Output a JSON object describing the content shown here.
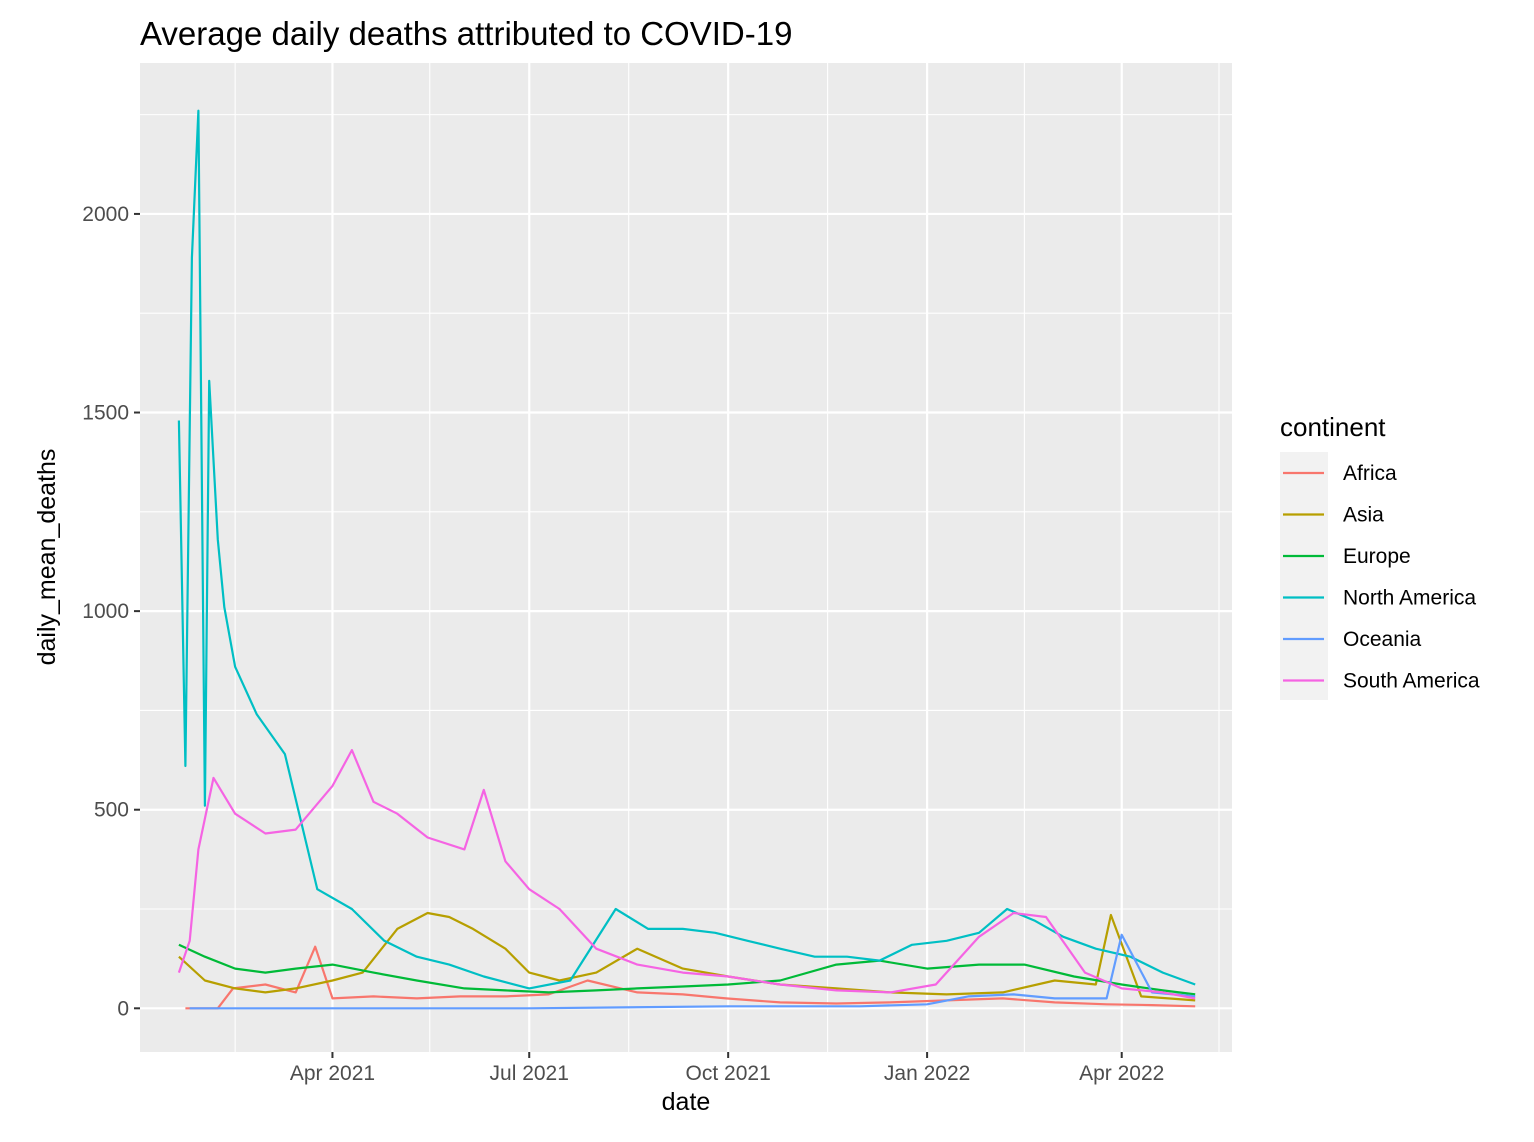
{
  "chart_data": {
    "type": "line",
    "title": "Average daily deaths attributed to COVID-19",
    "xlabel": "date",
    "ylabel": "daily_mean_deaths",
    "xlim": [
      "2021-01-02",
      "2022-05-22"
    ],
    "ylim": [
      -110,
      2380
    ],
    "x_ticks": [
      {
        "date": "2021-04-01",
        "label": "Apr 2021"
      },
      {
        "date": "2021-07-01",
        "label": "Jul 2021"
      },
      {
        "date": "2021-10-01",
        "label": "Oct 2021"
      },
      {
        "date": "2022-01-01",
        "label": "Jan 2022"
      },
      {
        "date": "2022-04-01",
        "label": "Apr 2022"
      }
    ],
    "x_minor_ticks": [
      "2021-02-15",
      "2021-05-16",
      "2021-08-16",
      "2021-11-16",
      "2022-02-15",
      "2022-05-16"
    ],
    "y_ticks": [
      0,
      500,
      1000,
      1500,
      2000
    ],
    "y_minor_ticks": [
      250,
      750,
      1250,
      1750,
      2250
    ],
    "grid": true,
    "legend": {
      "title": "continent",
      "position": "right"
    },
    "series": [
      {
        "name": "Africa",
        "color": "#F8766D",
        "x": [
          "2021-01-23",
          "2021-02-07",
          "2021-02-14",
          "2021-03-01",
          "2021-03-15",
          "2021-03-24",
          "2021-04-01",
          "2021-04-20",
          "2021-05-10",
          "2021-05-30",
          "2021-06-20",
          "2021-07-10",
          "2021-07-28",
          "2021-08-20",
          "2021-09-10",
          "2021-09-30",
          "2021-10-25",
          "2021-11-20",
          "2021-12-15",
          "2022-01-10",
          "2022-02-05",
          "2022-03-01",
          "2022-03-25",
          "2022-04-15",
          "2022-05-05"
        ],
        "y": [
          0,
          0,
          50,
          60,
          40,
          155,
          25,
          30,
          25,
          30,
          30,
          35,
          70,
          40,
          35,
          25,
          15,
          12,
          15,
          20,
          25,
          15,
          10,
          8,
          5
        ]
      },
      {
        "name": "Asia",
        "color": "#B79F00",
        "x": [
          "2021-01-20",
          "2021-02-01",
          "2021-02-15",
          "2021-03-01",
          "2021-03-15",
          "2021-04-01",
          "2021-04-15",
          "2021-05-01",
          "2021-05-15",
          "2021-05-25",
          "2021-06-05",
          "2021-06-20",
          "2021-07-01",
          "2021-07-15",
          "2021-08-01",
          "2021-08-20",
          "2021-09-10",
          "2021-10-01",
          "2021-10-25",
          "2021-11-20",
          "2021-12-15",
          "2022-01-10",
          "2022-02-05",
          "2022-03-01",
          "2022-03-20",
          "2022-03-27",
          "2022-04-10",
          "2022-05-05"
        ],
        "y": [
          130,
          70,
          50,
          40,
          50,
          70,
          90,
          200,
          240,
          230,
          200,
          150,
          90,
          70,
          90,
          150,
          100,
          80,
          60,
          50,
          40,
          35,
          40,
          70,
          60,
          235,
          30,
          20
        ]
      },
      {
        "name": "Europe",
        "color": "#00BA38",
        "x": [
          "2021-01-20",
          "2021-02-01",
          "2021-02-15",
          "2021-03-01",
          "2021-03-15",
          "2021-04-01",
          "2021-04-20",
          "2021-05-10",
          "2021-06-01",
          "2021-06-20",
          "2021-07-10",
          "2021-08-01",
          "2021-08-20",
          "2021-09-10",
          "2021-10-01",
          "2021-10-25",
          "2021-11-20",
          "2021-12-10",
          "2022-01-01",
          "2022-01-25",
          "2022-02-15",
          "2022-03-10",
          "2022-04-01",
          "2022-04-20",
          "2022-05-05"
        ],
        "y": [
          160,
          130,
          100,
          90,
          100,
          110,
          90,
          70,
          50,
          45,
          40,
          45,
          50,
          55,
          60,
          70,
          110,
          120,
          100,
          110,
          110,
          80,
          60,
          45,
          35
        ]
      },
      {
        "name": "North America",
        "color": "#00BFC4",
        "x": [
          "2021-01-20",
          "2021-01-23",
          "2021-01-26",
          "2021-01-29",
          "2021-02-01",
          "2021-02-03",
          "2021-02-07",
          "2021-02-10",
          "2021-02-15",
          "2021-02-25",
          "2021-03-10",
          "2021-03-25",
          "2021-04-10",
          "2021-04-25",
          "2021-05-10",
          "2021-05-25",
          "2021-06-10",
          "2021-07-01",
          "2021-07-20",
          "2021-08-10",
          "2021-08-25",
          "2021-09-10",
          "2021-09-25",
          "2021-10-10",
          "2021-10-25",
          "2021-11-10",
          "2021-11-25",
          "2021-12-10",
          "2021-12-25",
          "2022-01-10",
          "2022-01-25",
          "2022-02-07",
          "2022-02-20",
          "2022-03-05",
          "2022-03-20",
          "2022-04-05",
          "2022-04-20",
          "2022-05-05"
        ],
        "y": [
          1480,
          610,
          1890,
          2260,
          510,
          1580,
          1180,
          1010,
          860,
          740,
          640,
          300,
          250,
          170,
          130,
          110,
          80,
          50,
          70,
          250,
          200,
          200,
          190,
          170,
          150,
          130,
          130,
          120,
          160,
          170,
          190,
          250,
          220,
          180,
          150,
          130,
          90,
          60
        ]
      },
      {
        "name": "Oceania",
        "color": "#619CFF",
        "x": [
          "2021-01-25",
          "2021-04-01",
          "2021-07-01",
          "2021-10-01",
          "2021-12-01",
          "2022-01-01",
          "2022-01-20",
          "2022-02-10",
          "2022-03-01",
          "2022-03-25",
          "2022-04-01",
          "2022-04-15",
          "2022-05-05"
        ],
        "y": [
          0,
          0,
          0,
          5,
          5,
          10,
          30,
          35,
          25,
          25,
          185,
          40,
          30
        ]
      },
      {
        "name": "South America",
        "color": "#F564E3",
        "x": [
          "2021-01-20",
          "2021-01-25",
          "2021-01-29",
          "2021-02-05",
          "2021-02-15",
          "2021-03-01",
          "2021-03-15",
          "2021-04-01",
          "2021-04-10",
          "2021-04-20",
          "2021-05-01",
          "2021-05-15",
          "2021-06-01",
          "2021-06-10",
          "2021-06-20",
          "2021-07-01",
          "2021-07-15",
          "2021-08-01",
          "2021-08-20",
          "2021-09-10",
          "2021-10-01",
          "2021-10-25",
          "2021-11-20",
          "2021-12-15",
          "2022-01-05",
          "2022-01-25",
          "2022-02-10",
          "2022-02-25",
          "2022-03-15",
          "2022-04-01",
          "2022-04-20",
          "2022-05-05"
        ],
        "y": [
          90,
          170,
          400,
          580,
          490,
          440,
          450,
          560,
          650,
          520,
          490,
          430,
          400,
          550,
          370,
          300,
          250,
          150,
          110,
          90,
          80,
          60,
          45,
          40,
          60,
          180,
          240,
          230,
          90,
          50,
          40,
          25
        ]
      }
    ]
  }
}
